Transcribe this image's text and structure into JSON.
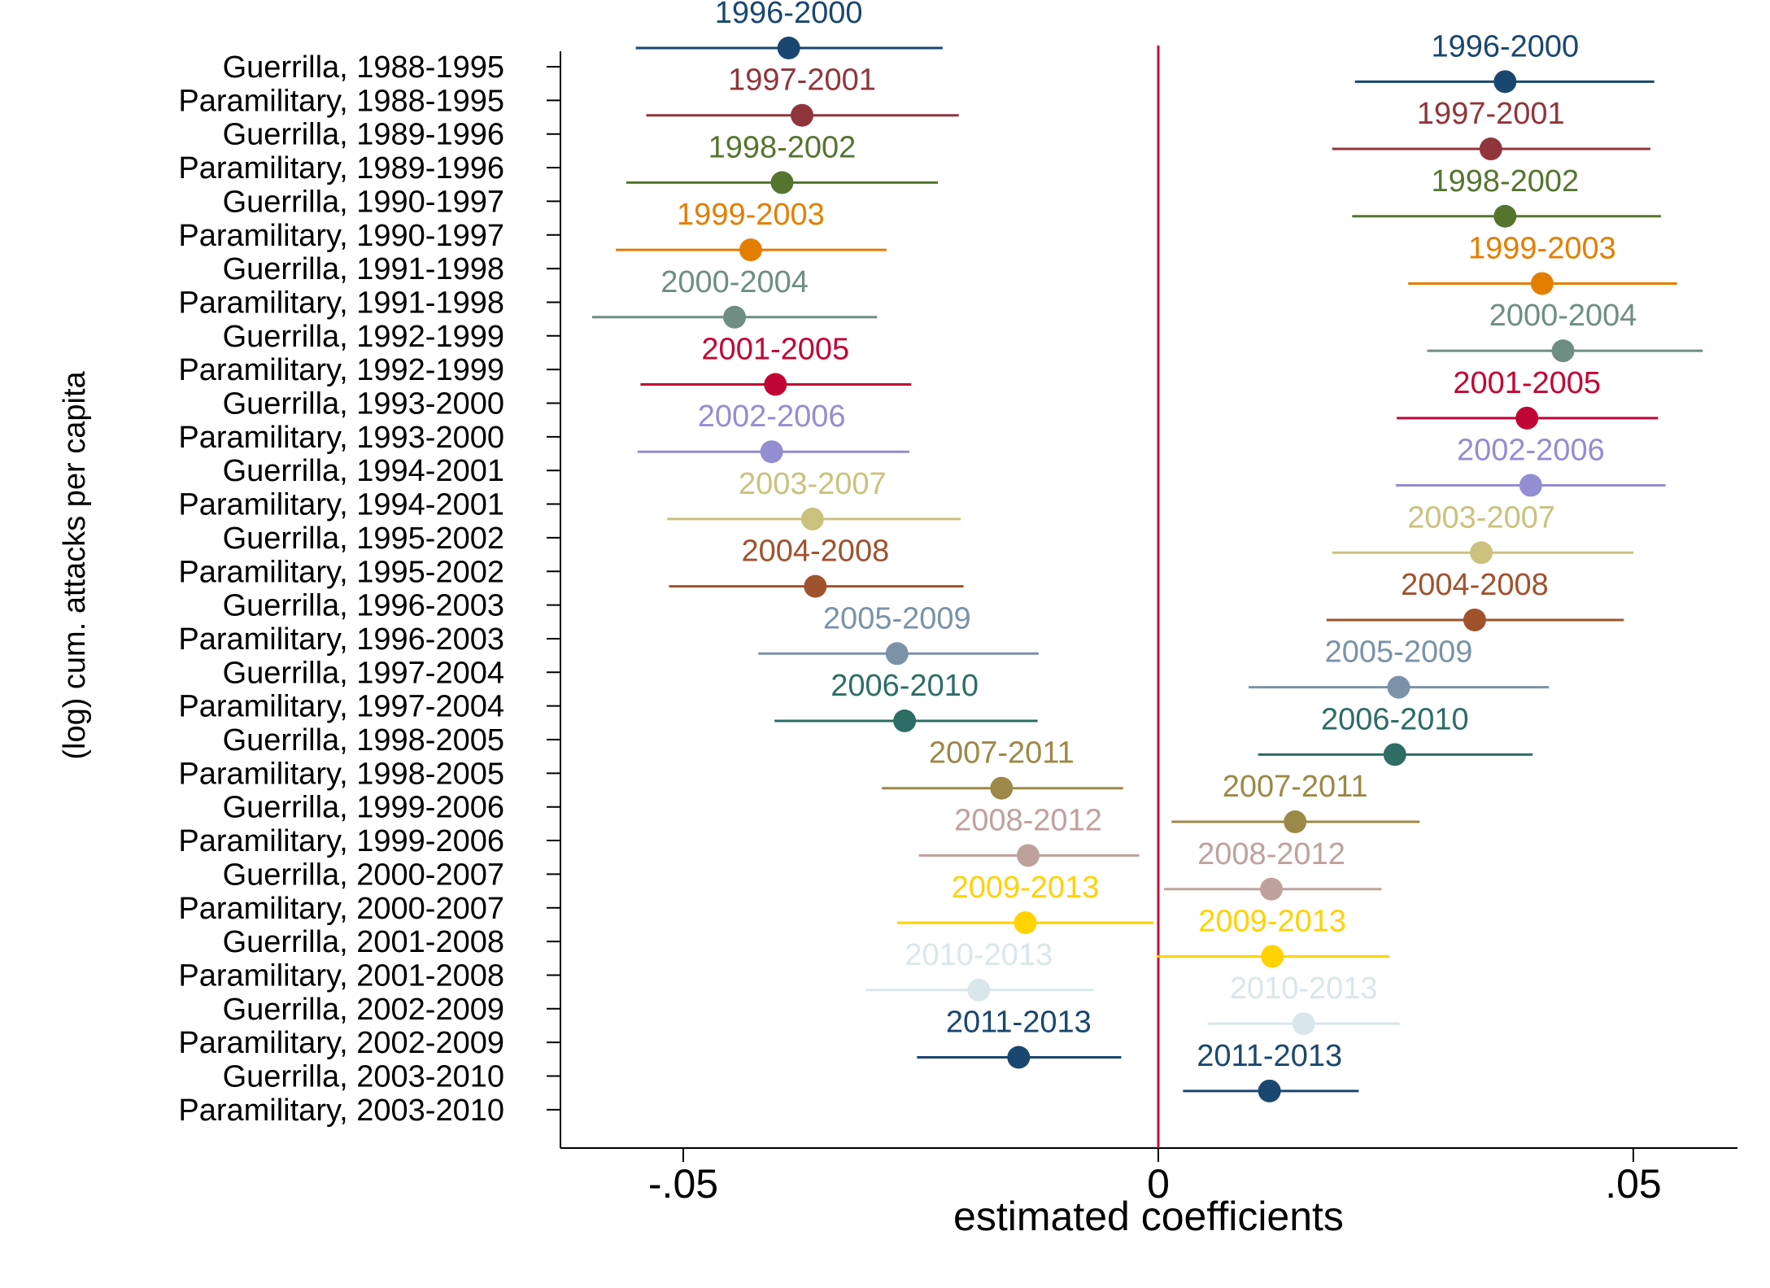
{
  "chart_data": {
    "type": "scatter",
    "subtype": "coefficient-plot",
    "title": "",
    "xlabel": "estimated coefficients",
    "ylabel": "(log) cum. attacks per capita",
    "xlim": [
      -0.0625,
      0.0585
    ],
    "x_ticks": [
      {
        "value": -0.05,
        "label": "-.05"
      },
      {
        "value": 0,
        "label": "0"
      },
      {
        "value": 0.05,
        "label": ".05"
      }
    ],
    "reference_line": {
      "x": 0,
      "color": "#c8102e"
    },
    "grid": false,
    "legend": "none",
    "y_categories": [
      "Guerrilla, 1988-1995",
      "Paramilitary, 1988-1995",
      "Guerrilla, 1989-1996",
      "Paramilitary, 1989-1996",
      "Guerrilla, 1990-1997",
      "Paramilitary, 1990-1997",
      "Guerrilla, 1991-1998",
      "Paramilitary, 1991-1998",
      "Guerrilla, 1992-1999",
      "Paramilitary, 1992-1999",
      "Guerrilla, 1993-2000",
      "Paramilitary, 1993-2000",
      "Guerrilla, 1994-2001",
      "Paramilitary, 1994-2001",
      "Guerrilla, 1995-2002",
      "Paramilitary, 1995-2002",
      "Guerrilla, 1996-2003",
      "Paramilitary, 1996-2003",
      "Guerrilla, 1997-2004",
      "Paramilitary, 1997-2004",
      "Guerrilla, 1998-2005",
      "Paramilitary, 1998-2005",
      "Guerrilla, 1999-2006",
      "Paramilitary, 1999-2006",
      "Guerrilla, 2000-2007",
      "Paramilitary, 2000-2007",
      "Guerrilla, 2001-2008",
      "Paramilitary, 2001-2008",
      "Guerrilla, 2002-2009",
      "Paramilitary, 2002-2009",
      "Guerrilla, 2003-2010",
      "Paramilitary, 2003-2010"
    ],
    "series": [
      {
        "name": "1996-2000",
        "color": "#1a476f",
        "left": {
          "est": -0.0389,
          "lo": -0.055,
          "hi": -0.0227
        },
        "right": {
          "est": 0.0365,
          "lo": 0.0207,
          "hi": 0.0522
        }
      },
      {
        "name": "1997-2001",
        "color": "#90353b",
        "left": {
          "est": -0.0375,
          "lo": -0.0539,
          "hi": -0.021
        },
        "right": {
          "est": 0.035,
          "lo": 0.0183,
          "hi": 0.0518
        }
      },
      {
        "name": "1998-2002",
        "color": "#55752f",
        "left": {
          "est": -0.0396,
          "lo": -0.056,
          "hi": -0.0232
        },
        "right": {
          "est": 0.0365,
          "lo": 0.0204,
          "hi": 0.0529
        }
      },
      {
        "name": "1999-2003",
        "color": "#e37e00",
        "left": {
          "est": -0.0429,
          "lo": -0.0571,
          "hi": -0.0286
        },
        "right": {
          "est": 0.0404,
          "lo": 0.0263,
          "hi": 0.0546
        }
      },
      {
        "name": "2000-2004",
        "color": "#6e8e84",
        "left": {
          "est": -0.0446,
          "lo": -0.0596,
          "hi": -0.0296
        },
        "right": {
          "est": 0.0426,
          "lo": 0.0283,
          "hi": 0.0573
        }
      },
      {
        "name": "2001-2005",
        "color": "#c10534",
        "left": {
          "est": -0.0403,
          "lo": -0.0545,
          "hi": -0.026
        },
        "right": {
          "est": 0.0388,
          "lo": 0.0251,
          "hi": 0.0526
        }
      },
      {
        "name": "2002-2006",
        "color": "#938dd2",
        "left": {
          "est": -0.0407,
          "lo": -0.0548,
          "hi": -0.0262
        },
        "right": {
          "est": 0.0392,
          "lo": 0.025,
          "hi": 0.0534
        }
      },
      {
        "name": "2003-2007",
        "color": "#cac27e",
        "left": {
          "est": -0.0364,
          "lo": -0.0517,
          "hi": -0.0208
        },
        "right": {
          "est": 0.034,
          "lo": 0.0183,
          "hi": 0.05
        }
      },
      {
        "name": "2004-2008",
        "color": "#a0522d",
        "left": {
          "est": -0.0361,
          "lo": -0.0515,
          "hi": -0.0205
        },
        "right": {
          "est": 0.0333,
          "lo": 0.0177,
          "hi": 0.049
        }
      },
      {
        "name": "2005-2009",
        "color": "#7b92a8",
        "left": {
          "est": -0.0275,
          "lo": -0.0421,
          "hi": -0.0126
        },
        "right": {
          "est": 0.0253,
          "lo": 0.0095,
          "hi": 0.0411
        }
      },
      {
        "name": "2006-2010",
        "color": "#2d6d66",
        "left": {
          "est": -0.0267,
          "lo": -0.0404,
          "hi": -0.0127
        },
        "right": {
          "est": 0.0249,
          "lo": 0.0105,
          "hi": 0.0394
        }
      },
      {
        "name": "2007-2011",
        "color": "#9c8847",
        "left": {
          "est": -0.0165,
          "lo": -0.0291,
          "hi": -0.0037
        },
        "right": {
          "est": 0.0144,
          "lo": 0.0014,
          "hi": 0.0275
        }
      },
      {
        "name": "2008-2012",
        "color": "#bfa19c",
        "left": {
          "est": -0.0137,
          "lo": -0.0252,
          "hi": -0.002
        },
        "right": {
          "est": 0.0119,
          "lo": 0.0006,
          "hi": 0.0235
        }
      },
      {
        "name": "2009-2013",
        "color": "#ffd200",
        "left": {
          "est": -0.014,
          "lo": -0.0275,
          "hi": -0.0005
        },
        "right": {
          "est": 0.012,
          "lo": -0.0002,
          "hi": 0.0243
        }
      },
      {
        "name": "2010-2013",
        "color": "#d9e6eb",
        "left": {
          "est": -0.0189,
          "lo": -0.0308,
          "hi": -0.0068
        },
        "right": {
          "est": 0.0153,
          "lo": 0.0052,
          "hi": 0.0254
        }
      },
      {
        "name": "2011-2013",
        "color": "#1a476f",
        "left": {
          "est": -0.0147,
          "lo": -0.0254,
          "hi": -0.0039
        },
        "right": {
          "est": 0.0117,
          "lo": 0.0026,
          "hi": 0.0211
        }
      }
    ]
  }
}
